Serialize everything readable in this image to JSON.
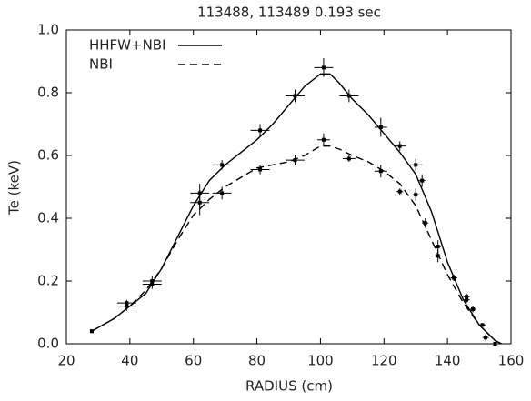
{
  "chart_data": {
    "type": "line",
    "title": "113488, 113489  0.193 sec",
    "xlabel": "RADIUS (cm)",
    "ylabel": "Te (keV)",
    "xlim": [
      20,
      160
    ],
    "ylim": [
      0,
      1
    ],
    "xticks": [
      20,
      40,
      60,
      80,
      100,
      120,
      140,
      160
    ],
    "yticks": [
      {
        "value": 0,
        "label": "0.0"
      },
      0.2,
      0.4,
      0.6,
      0.8,
      {
        "value": 1,
        "label": "1.0"
      }
    ],
    "grid": false,
    "legend": "upper left",
    "series": [
      {
        "name": "HHFW+NBI",
        "color": "#000000",
        "dash": "solid",
        "x": [
          28,
          35,
          40,
          45,
          50,
          55,
          60,
          65,
          70,
          75,
          80,
          85,
          90,
          95,
          100,
          103,
          106,
          110,
          115,
          120,
          125,
          130,
          135,
          140,
          145,
          150,
          155,
          157
        ],
        "values": [
          0.04,
          0.08,
          0.12,
          0.16,
          0.24,
          0.34,
          0.44,
          0.52,
          0.57,
          0.61,
          0.65,
          0.7,
          0.76,
          0.82,
          0.86,
          0.86,
          0.83,
          0.78,
          0.73,
          0.67,
          0.61,
          0.54,
          0.42,
          0.26,
          0.14,
          0.06,
          0.01,
          0
        ],
        "points": {
          "x": [
            28,
            39,
            47,
            62,
            69,
            81,
            92,
            101,
            109,
            119,
            125,
            130,
            132,
            137,
            142,
            146,
            148,
            152
          ],
          "values": [
            0.04,
            0.13,
            0.2,
            0.48,
            0.57,
            0.68,
            0.79,
            0.88,
            0.79,
            0.69,
            0.63,
            0.57,
            0.52,
            0.31,
            0.21,
            0.15,
            0.11,
            0.02
          ],
          "xerr": [
            0,
            3,
            3,
            3,
            3,
            3,
            3,
            3,
            3,
            2,
            2,
            2,
            1,
            1,
            1,
            1,
            1,
            1
          ],
          "yerr": [
            0,
            0.01,
            0.015,
            0.03,
            0.015,
            0.02,
            0.02,
            0.03,
            0.02,
            0.03,
            0.015,
            0.02,
            0.02,
            0.02,
            0.01,
            0.01,
            0.01,
            0.01
          ]
        }
      },
      {
        "name": "NBI",
        "color": "#000000",
        "dash": "dashed",
        "x": [
          28,
          35,
          40,
          45,
          50,
          55,
          60,
          65,
          70,
          75,
          80,
          85,
          90,
          95,
          100,
          103,
          106,
          110,
          115,
          120,
          125,
          130,
          135,
          140,
          145,
          150,
          155,
          157
        ],
        "values": [
          0.04,
          0.08,
          0.12,
          0.17,
          0.24,
          0.33,
          0.41,
          0.46,
          0.5,
          0.53,
          0.56,
          0.57,
          0.58,
          0.6,
          0.63,
          0.63,
          0.62,
          0.6,
          0.58,
          0.55,
          0.51,
          0.44,
          0.33,
          0.22,
          0.13,
          0.06,
          0.01,
          0
        ],
        "points": {
          "x": [
            28,
            39,
            47,
            62,
            69,
            81,
            92,
            101,
            109,
            119,
            125,
            130,
            133,
            137,
            142,
            146,
            148,
            151,
            155
          ],
          "values": [
            0.04,
            0.12,
            0.19,
            0.45,
            0.48,
            0.555,
            0.585,
            0.65,
            0.59,
            0.55,
            0.485,
            0.475,
            0.385,
            0.28,
            0.21,
            0.14,
            0.11,
            0.06,
            0
          ],
          "xerr": [
            0,
            3,
            3,
            3,
            3,
            3,
            3,
            2,
            2,
            2,
            1,
            1,
            1,
            1,
            1,
            1,
            1,
            1,
            1
          ],
          "yerr": [
            0,
            0.015,
            0.015,
            0.04,
            0.02,
            0.015,
            0.015,
            0.02,
            0.01,
            0.02,
            0.01,
            0.02,
            0.015,
            0.02,
            0.01,
            0.01,
            0.005,
            0.005,
            0
          ]
        }
      }
    ]
  }
}
